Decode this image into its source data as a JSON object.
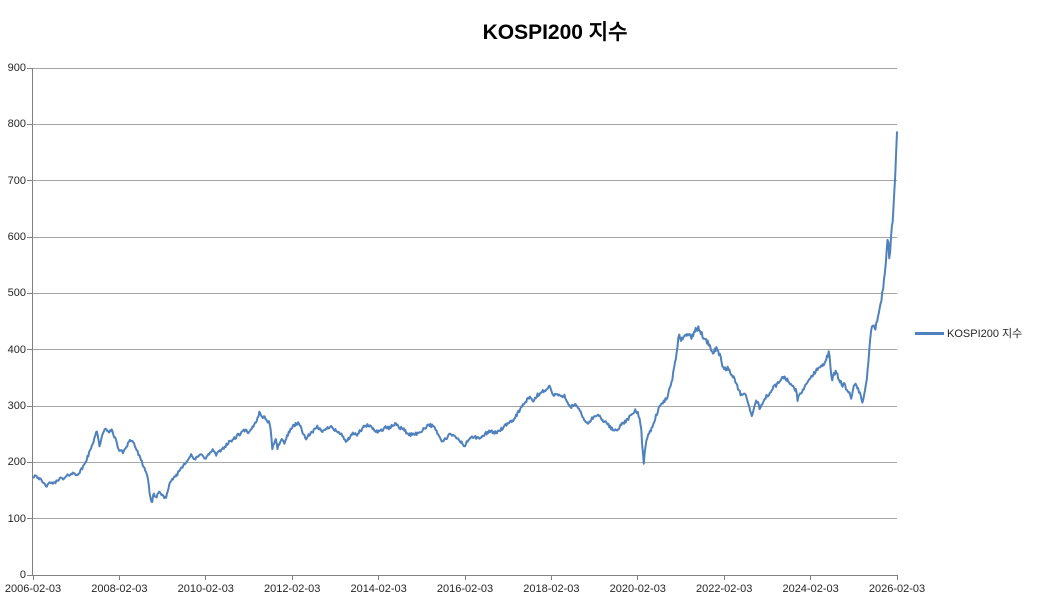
{
  "title": "KOSPI200 지수",
  "legend": {
    "label": "KOSPI200 지수"
  },
  "colors": {
    "line": "#4F81BD",
    "gridline": "#A6A6A6",
    "axis": "#808080",
    "tick_label": "#262626",
    "title": "#000000",
    "background": "#FFFFFF"
  },
  "chart_data": {
    "type": "line",
    "title": "KOSPI200 지수",
    "xlabel": "",
    "ylabel": "",
    "ylim": [
      0,
      900
    ],
    "y_ticks": [
      0,
      100,
      200,
      300,
      400,
      500,
      600,
      700,
      800,
      900
    ],
    "x_ticks": [
      "2006-02-03",
      "2008-02-03",
      "2010-02-03",
      "2012-02-03",
      "2014-02-03",
      "2016-02-03",
      "2018-02-03",
      "2020-02-03",
      "2022-02-03",
      "2024-02-03",
      "2026-02-03"
    ],
    "x_range": [
      2006.09,
      2026.09
    ],
    "grid": "horizontal",
    "legend_position": "right",
    "noise_amplitude": 3,
    "noise_seed": 42,
    "series": [
      {
        "name": "KOSPI200 지수",
        "color": "#4F81BD",
        "points": [
          [
            2006.09,
            174
          ],
          [
            2006.15,
            178
          ],
          [
            2006.25,
            170
          ],
          [
            2006.35,
            161
          ],
          [
            2006.42,
            158
          ],
          [
            2006.5,
            165
          ],
          [
            2006.58,
            162
          ],
          [
            2006.7,
            172
          ],
          [
            2006.8,
            170
          ],
          [
            2006.9,
            177
          ],
          [
            2007.0,
            181
          ],
          [
            2007.08,
            178
          ],
          [
            2007.17,
            182
          ],
          [
            2007.25,
            192
          ],
          [
            2007.33,
            205
          ],
          [
            2007.42,
            222
          ],
          [
            2007.5,
            240
          ],
          [
            2007.56,
            258
          ],
          [
            2007.63,
            230
          ],
          [
            2007.7,
            248
          ],
          [
            2007.78,
            262
          ],
          [
            2007.85,
            252
          ],
          [
            2007.92,
            258
          ],
          [
            2008.0,
            240
          ],
          [
            2008.08,
            222
          ],
          [
            2008.17,
            218
          ],
          [
            2008.25,
            228
          ],
          [
            2008.33,
            240
          ],
          [
            2008.42,
            235
          ],
          [
            2008.5,
            220
          ],
          [
            2008.58,
            205
          ],
          [
            2008.67,
            190
          ],
          [
            2008.75,
            170
          ],
          [
            2008.8,
            140
          ],
          [
            2008.84,
            126
          ],
          [
            2008.88,
            148
          ],
          [
            2008.92,
            135
          ],
          [
            2009.0,
            148
          ],
          [
            2009.08,
            142
          ],
          [
            2009.17,
            136
          ],
          [
            2009.25,
            160
          ],
          [
            2009.33,
            172
          ],
          [
            2009.42,
            178
          ],
          [
            2009.5,
            188
          ],
          [
            2009.58,
            196
          ],
          [
            2009.67,
            205
          ],
          [
            2009.75,
            212
          ],
          [
            2009.83,
            205
          ],
          [
            2009.92,
            210
          ],
          [
            2010.0,
            216
          ],
          [
            2010.08,
            206
          ],
          [
            2010.17,
            215
          ],
          [
            2010.25,
            222
          ],
          [
            2010.33,
            213
          ],
          [
            2010.42,
            220
          ],
          [
            2010.5,
            226
          ],
          [
            2010.58,
            232
          ],
          [
            2010.67,
            238
          ],
          [
            2010.75,
            242
          ],
          [
            2010.83,
            248
          ],
          [
            2010.92,
            252
          ],
          [
            2011.0,
            258
          ],
          [
            2011.08,
            250
          ],
          [
            2011.17,
            262
          ],
          [
            2011.25,
            272
          ],
          [
            2011.33,
            288
          ],
          [
            2011.42,
            280
          ],
          [
            2011.5,
            276
          ],
          [
            2011.58,
            268
          ],
          [
            2011.63,
            224
          ],
          [
            2011.7,
            242
          ],
          [
            2011.75,
            226
          ],
          [
            2011.83,
            240
          ],
          [
            2011.92,
            235
          ],
          [
            2012.0,
            252
          ],
          [
            2012.08,
            262
          ],
          [
            2012.17,
            268
          ],
          [
            2012.25,
            270
          ],
          [
            2012.33,
            252
          ],
          [
            2012.42,
            242
          ],
          [
            2012.5,
            250
          ],
          [
            2012.58,
            255
          ],
          [
            2012.67,
            262
          ],
          [
            2012.75,
            258
          ],
          [
            2012.83,
            255
          ],
          [
            2012.92,
            262
          ],
          [
            2013.0,
            265
          ],
          [
            2013.08,
            258
          ],
          [
            2013.17,
            252
          ],
          [
            2013.25,
            248
          ],
          [
            2013.33,
            238
          ],
          [
            2013.42,
            242
          ],
          [
            2013.5,
            252
          ],
          [
            2013.58,
            248
          ],
          [
            2013.67,
            256
          ],
          [
            2013.75,
            262
          ],
          [
            2013.83,
            266
          ],
          [
            2013.92,
            262
          ],
          [
            2014.0,
            258
          ],
          [
            2014.08,
            254
          ],
          [
            2014.17,
            258
          ],
          [
            2014.25,
            262
          ],
          [
            2014.33,
            260
          ],
          [
            2014.42,
            266
          ],
          [
            2014.5,
            268
          ],
          [
            2014.58,
            262
          ],
          [
            2014.67,
            258
          ],
          [
            2014.75,
            252
          ],
          [
            2014.83,
            248
          ],
          [
            2014.92,
            252
          ],
          [
            2015.0,
            250
          ],
          [
            2015.08,
            256
          ],
          [
            2015.17,
            262
          ],
          [
            2015.25,
            268
          ],
          [
            2015.33,
            264
          ],
          [
            2015.42,
            258
          ],
          [
            2015.5,
            244
          ],
          [
            2015.58,
            236
          ],
          [
            2015.67,
            244
          ],
          [
            2015.75,
            250
          ],
          [
            2015.83,
            246
          ],
          [
            2015.92,
            242
          ],
          [
            2016.0,
            236
          ],
          [
            2016.08,
            228
          ],
          [
            2016.17,
            240
          ],
          [
            2016.25,
            246
          ],
          [
            2016.33,
            244
          ],
          [
            2016.42,
            242
          ],
          [
            2016.5,
            246
          ],
          [
            2016.58,
            252
          ],
          [
            2016.67,
            256
          ],
          [
            2016.75,
            252
          ],
          [
            2016.83,
            254
          ],
          [
            2016.92,
            258
          ],
          [
            2017.0,
            263
          ],
          [
            2017.08,
            268
          ],
          [
            2017.17,
            272
          ],
          [
            2017.25,
            280
          ],
          [
            2017.33,
            290
          ],
          [
            2017.42,
            300
          ],
          [
            2017.5,
            308
          ],
          [
            2017.58,
            315
          ],
          [
            2017.67,
            308
          ],
          [
            2017.75,
            318
          ],
          [
            2017.83,
            322
          ],
          [
            2017.92,
            328
          ],
          [
            2018.0,
            330
          ],
          [
            2018.05,
            336
          ],
          [
            2018.13,
            318
          ],
          [
            2018.21,
            322
          ],
          [
            2018.29,
            316
          ],
          [
            2018.38,
            320
          ],
          [
            2018.46,
            308
          ],
          [
            2018.54,
            298
          ],
          [
            2018.63,
            302
          ],
          [
            2018.71,
            296
          ],
          [
            2018.79,
            284
          ],
          [
            2018.88,
            272
          ],
          [
            2018.96,
            270
          ],
          [
            2019.04,
            278
          ],
          [
            2019.13,
            284
          ],
          [
            2019.21,
            280
          ],
          [
            2019.29,
            274
          ],
          [
            2019.38,
            268
          ],
          [
            2019.46,
            262
          ],
          [
            2019.54,
            256
          ],
          [
            2019.63,
            260
          ],
          [
            2019.71,
            266
          ],
          [
            2019.79,
            272
          ],
          [
            2019.88,
            278
          ],
          [
            2019.96,
            286
          ],
          [
            2020.04,
            292
          ],
          [
            2020.1,
            286
          ],
          [
            2020.16,
            268
          ],
          [
            2020.2,
            222
          ],
          [
            2020.23,
            200
          ],
          [
            2020.27,
            232
          ],
          [
            2020.33,
            248
          ],
          [
            2020.42,
            262
          ],
          [
            2020.5,
            280
          ],
          [
            2020.58,
            296
          ],
          [
            2020.67,
            306
          ],
          [
            2020.75,
            312
          ],
          [
            2020.83,
            330
          ],
          [
            2020.92,
            360
          ],
          [
            2021.0,
            398
          ],
          [
            2021.04,
            432
          ],
          [
            2021.08,
            418
          ],
          [
            2021.17,
            424
          ],
          [
            2021.25,
            428
          ],
          [
            2021.33,
            422
          ],
          [
            2021.42,
            434
          ],
          [
            2021.5,
            438
          ],
          [
            2021.58,
            426
          ],
          [
            2021.67,
            418
          ],
          [
            2021.75,
            406
          ],
          [
            2021.83,
            396
          ],
          [
            2021.92,
            402
          ],
          [
            2022.0,
            388
          ],
          [
            2022.08,
            364
          ],
          [
            2022.17,
            368
          ],
          [
            2022.25,
            358
          ],
          [
            2022.33,
            348
          ],
          [
            2022.42,
            330
          ],
          [
            2022.5,
            316
          ],
          [
            2022.58,
            322
          ],
          [
            2022.67,
            298
          ],
          [
            2022.73,
            284
          ],
          [
            2022.79,
            296
          ],
          [
            2022.83,
            312
          ],
          [
            2022.92,
            296
          ],
          [
            2023.0,
            308
          ],
          [
            2023.08,
            318
          ],
          [
            2023.17,
            326
          ],
          [
            2023.25,
            334
          ],
          [
            2023.33,
            340
          ],
          [
            2023.42,
            348
          ],
          [
            2023.5,
            352
          ],
          [
            2023.58,
            342
          ],
          [
            2023.67,
            336
          ],
          [
            2023.75,
            328
          ],
          [
            2023.79,
            312
          ],
          [
            2023.88,
            324
          ],
          [
            2023.96,
            336
          ],
          [
            2024.04,
            346
          ],
          [
            2024.13,
            352
          ],
          [
            2024.21,
            364
          ],
          [
            2024.29,
            368
          ],
          [
            2024.38,
            374
          ],
          [
            2024.46,
            384
          ],
          [
            2024.52,
            398
          ],
          [
            2024.58,
            342
          ],
          [
            2024.63,
            356
          ],
          [
            2024.67,
            362
          ],
          [
            2024.75,
            348
          ],
          [
            2024.83,
            336
          ],
          [
            2024.88,
            342
          ],
          [
            2024.92,
            330
          ],
          [
            2025.0,
            322
          ],
          [
            2025.04,
            312
          ],
          [
            2025.08,
            332
          ],
          [
            2025.13,
            340
          ],
          [
            2025.17,
            334
          ],
          [
            2025.21,
            326
          ],
          [
            2025.25,
            316
          ],
          [
            2025.29,
            306
          ],
          [
            2025.33,
            322
          ],
          [
            2025.38,
            342
          ],
          [
            2025.42,
            368
          ],
          [
            2025.46,
            412
          ],
          [
            2025.5,
            436
          ],
          [
            2025.54,
            446
          ],
          [
            2025.58,
            432
          ],
          [
            2025.63,
            452
          ],
          [
            2025.67,
            466
          ],
          [
            2025.71,
            478
          ],
          [
            2025.75,
            500
          ],
          [
            2025.79,
            524
          ],
          [
            2025.83,
            556
          ],
          [
            2025.86,
            584
          ],
          [
            2025.88,
            600
          ],
          [
            2025.9,
            572
          ],
          [
            2025.92,
            556
          ],
          [
            2025.94,
            588
          ],
          [
            2025.96,
            606
          ],
          [
            2026.0,
            640
          ],
          [
            2026.04,
            692
          ],
          [
            2026.09,
            780
          ]
        ]
      }
    ]
  }
}
